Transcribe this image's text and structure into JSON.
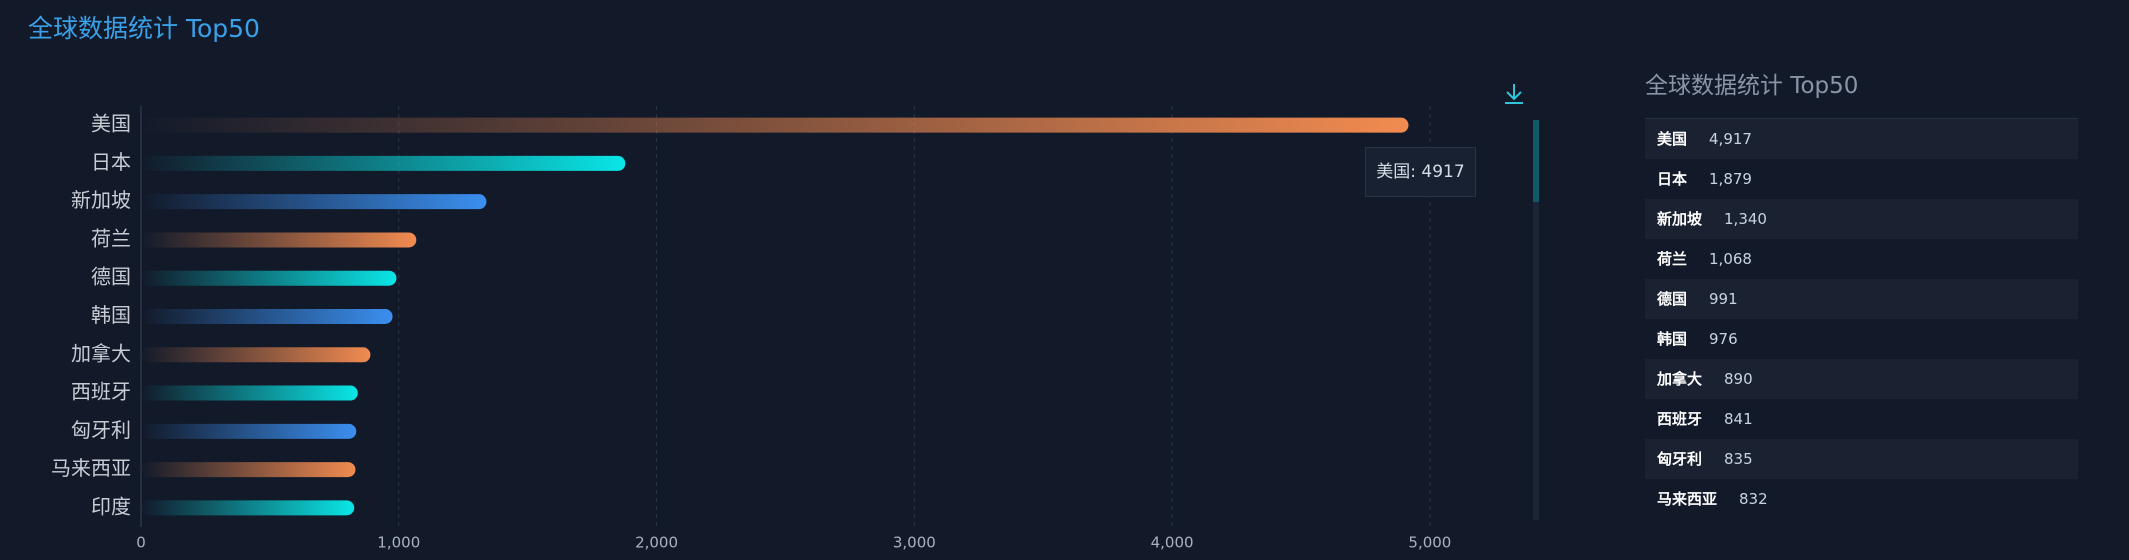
{
  "chart_data": {
    "type": "bar",
    "orientation": "horizontal",
    "title": "全球数据统计 Top50",
    "categories": [
      "美国",
      "日本",
      "新加坡",
      "荷兰",
      "德国",
      "韩国",
      "加拿大",
      "西班牙",
      "匈牙利",
      "马来西亚",
      "印度"
    ],
    "values": [
      4917,
      1879,
      1340,
      1068,
      991,
      976,
      890,
      841,
      835,
      832,
      827
    ],
    "colors": [
      "#f28b50",
      "#0ae6e6",
      "#3b8ff0"
    ],
    "xlim": [
      0,
      5400
    ],
    "xticks": [
      0,
      {
        "value": 1000,
        "label": "1,000"
      },
      {
        "value": 2000,
        "label": "2,000"
      },
      {
        "value": 3000,
        "label": "3,000"
      },
      {
        "value": 4000,
        "label": "4,000"
      },
      {
        "value": 5000,
        "label": "5,000"
      }
    ],
    "grid": true,
    "tooltip": "美国: 4917"
  },
  "table": {
    "title": "全球数据统计 Top50",
    "rows": [
      [
        "美国",
        "4,917"
      ],
      [
        "日本",
        "1,879"
      ],
      [
        "新加坡",
        "1,340"
      ],
      [
        "荷兰",
        "1,068"
      ],
      [
        "德国",
        "991"
      ],
      [
        "韩国",
        "976"
      ],
      [
        "加拿大",
        "890"
      ],
      [
        "西班牙",
        "841"
      ],
      [
        "匈牙利",
        "835"
      ],
      [
        "马来西亚",
        "832"
      ]
    ]
  }
}
